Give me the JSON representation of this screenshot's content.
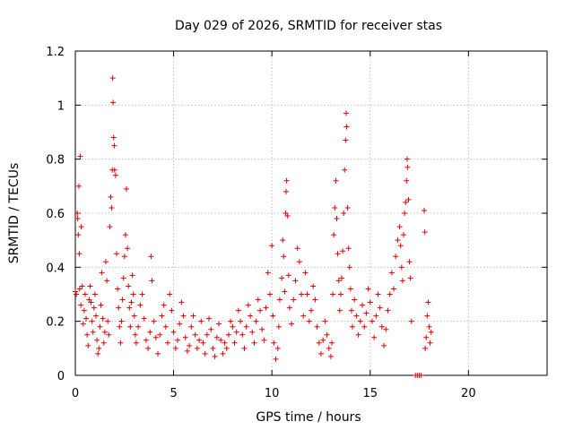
{
  "chart_data": {
    "type": "scatter",
    "title": "Day 029 of 2026, SRMTID for receiver stas",
    "xlabel": "GPS time / hours",
    "ylabel": "SRMTID / TECUs",
    "xlim": [
      0,
      24
    ],
    "ylim": [
      0,
      1.2
    ],
    "xticks": [
      0,
      5,
      10,
      15,
      20
    ],
    "xtick_labels": [
      "0",
      "5",
      "10",
      "15",
      "20"
    ],
    "yticks": [
      0,
      0.2,
      0.4,
      0.6,
      0.8,
      1,
      1.2
    ],
    "ytick_labels": [
      "0",
      "0.2",
      "0.4",
      "0.6",
      "0.8",
      "1",
      "1.2"
    ],
    "grid": true,
    "marker": "plus",
    "color": "#e00000",
    "series": [
      {
        "name": "SRMTID",
        "points": [
          [
            0.0,
            0.31
          ],
          [
            0.05,
            0.3
          ],
          [
            0.1,
            0.6
          ],
          [
            0.12,
            0.58
          ],
          [
            0.15,
            0.52
          ],
          [
            0.18,
            0.7
          ],
          [
            0.2,
            0.45
          ],
          [
            0.22,
            0.32
          ],
          [
            0.25,
            0.81
          ],
          [
            0.28,
            0.26
          ],
          [
            0.3,
            0.55
          ],
          [
            0.35,
            0.33
          ],
          [
            0.4,
            0.19
          ],
          [
            0.45,
            0.24
          ],
          [
            0.5,
            0.3
          ],
          [
            0.55,
            0.21
          ],
          [
            0.6,
            0.15
          ],
          [
            0.65,
            0.11
          ],
          [
            0.7,
            0.28
          ],
          [
            0.75,
            0.33
          ],
          [
            0.8,
            0.27
          ],
          [
            0.85,
            0.2
          ],
          [
            0.9,
            0.16
          ],
          [
            0.95,
            0.25
          ],
          [
            1.0,
            0.3
          ],
          [
            1.05,
            0.22
          ],
          [
            1.1,
            0.13
          ],
          [
            1.15,
            0.08
          ],
          [
            1.2,
            0.1
          ],
          [
            1.25,
            0.18
          ],
          [
            1.3,
            0.26
          ],
          [
            1.35,
            0.38
          ],
          [
            1.4,
            0.21
          ],
          [
            1.45,
            0.12
          ],
          [
            1.5,
            0.16
          ],
          [
            1.55,
            0.42
          ],
          [
            1.6,
            0.35
          ],
          [
            1.65,
            0.2
          ],
          [
            1.7,
            0.15
          ],
          [
            1.75,
            0.55
          ],
          [
            1.8,
            0.66
          ],
          [
            1.85,
            0.62
          ],
          [
            1.88,
            0.76
          ],
          [
            1.9,
            1.1
          ],
          [
            1.92,
            1.01
          ],
          [
            1.95,
            0.88
          ],
          [
            1.98,
            0.85
          ],
          [
            2.0,
            0.76
          ],
          [
            2.05,
            0.74
          ],
          [
            2.1,
            0.45
          ],
          [
            2.15,
            0.32
          ],
          [
            2.2,
            0.25
          ],
          [
            2.25,
            0.18
          ],
          [
            2.3,
            0.12
          ],
          [
            2.35,
            0.2
          ],
          [
            2.4,
            0.28
          ],
          [
            2.45,
            0.36
          ],
          [
            2.5,
            0.44
          ],
          [
            2.55,
            0.52
          ],
          [
            2.6,
            0.69
          ],
          [
            2.65,
            0.47
          ],
          [
            2.7,
            0.33
          ],
          [
            2.75,
            0.25
          ],
          [
            2.8,
            0.18
          ],
          [
            2.85,
            0.27
          ],
          [
            2.9,
            0.37
          ],
          [
            2.95,
            0.3
          ],
          [
            3.0,
            0.22
          ],
          [
            3.05,
            0.15
          ],
          [
            3.1,
            0.12
          ],
          [
            3.2,
            0.18
          ],
          [
            3.3,
            0.26
          ],
          [
            3.4,
            0.3
          ],
          [
            3.5,
            0.21
          ],
          [
            3.6,
            0.13
          ],
          [
            3.7,
            0.1
          ],
          [
            3.8,
            0.16
          ],
          [
            3.85,
            0.44
          ],
          [
            3.9,
            0.35
          ],
          [
            4.0,
            0.2
          ],
          [
            4.1,
            0.14
          ],
          [
            4.2,
            0.08
          ],
          [
            4.3,
            0.15
          ],
          [
            4.4,
            0.22
          ],
          [
            4.5,
            0.26
          ],
          [
            4.6,
            0.18
          ],
          [
            4.7,
            0.12
          ],
          [
            4.8,
            0.3
          ],
          [
            4.9,
            0.24
          ],
          [
            5.0,
            0.16
          ],
          [
            5.1,
            0.1
          ],
          [
            5.2,
            0.13
          ],
          [
            5.3,
            0.19
          ],
          [
            5.4,
            0.27
          ],
          [
            5.5,
            0.22
          ],
          [
            5.6,
            0.14
          ],
          [
            5.7,
            0.09
          ],
          [
            5.8,
            0.11
          ],
          [
            5.9,
            0.18
          ],
          [
            6.0,
            0.22
          ],
          [
            6.1,
            0.15
          ],
          [
            6.2,
            0.1
          ],
          [
            6.3,
            0.13
          ],
          [
            6.4,
            0.2
          ],
          [
            6.5,
            0.12
          ],
          [
            6.6,
            0.08
          ],
          [
            6.7,
            0.15
          ],
          [
            6.8,
            0.21
          ],
          [
            6.9,
            0.17
          ],
          [
            7.0,
            0.1
          ],
          [
            7.1,
            0.07
          ],
          [
            7.2,
            0.14
          ],
          [
            7.3,
            0.19
          ],
          [
            7.4,
            0.13
          ],
          [
            7.5,
            0.08
          ],
          [
            7.6,
            0.12
          ],
          [
            7.7,
            0.1
          ],
          [
            7.8,
            0.15
          ],
          [
            7.9,
            0.2
          ],
          [
            8.0,
            0.18
          ],
          [
            8.1,
            0.12
          ],
          [
            8.2,
            0.16
          ],
          [
            8.3,
            0.24
          ],
          [
            8.4,
            0.2
          ],
          [
            8.5,
            0.15
          ],
          [
            8.6,
            0.1
          ],
          [
            8.7,
            0.18
          ],
          [
            8.8,
            0.26
          ],
          [
            8.9,
            0.22
          ],
          [
            9.0,
            0.16
          ],
          [
            9.1,
            0.12
          ],
          [
            9.2,
            0.2
          ],
          [
            9.3,
            0.28
          ],
          [
            9.4,
            0.24
          ],
          [
            9.5,
            0.17
          ],
          [
            9.6,
            0.13
          ],
          [
            9.7,
            0.25
          ],
          [
            9.8,
            0.38
          ],
          [
            9.9,
            0.3
          ],
          [
            10.0,
            0.48
          ],
          [
            10.05,
            0.22
          ],
          [
            10.1,
            0.12
          ],
          [
            10.2,
            0.06
          ],
          [
            10.3,
            0.1
          ],
          [
            10.35,
            0.18
          ],
          [
            10.4,
            0.28
          ],
          [
            10.5,
            0.36
          ],
          [
            10.55,
            0.5
          ],
          [
            10.6,
            0.44
          ],
          [
            10.65,
            0.31
          ],
          [
            10.7,
            0.6
          ],
          [
            10.72,
            0.68
          ],
          [
            10.75,
            0.72
          ],
          [
            10.8,
            0.59
          ],
          [
            10.85,
            0.37
          ],
          [
            10.9,
            0.25
          ],
          [
            11.0,
            0.19
          ],
          [
            11.1,
            0.28
          ],
          [
            11.2,
            0.35
          ],
          [
            11.3,
            0.47
          ],
          [
            11.4,
            0.42
          ],
          [
            11.5,
            0.3
          ],
          [
            11.6,
            0.22
          ],
          [
            11.7,
            0.38
          ],
          [
            11.8,
            0.3
          ],
          [
            11.9,
            0.2
          ],
          [
            12.0,
            0.24
          ],
          [
            12.1,
            0.33
          ],
          [
            12.2,
            0.28
          ],
          [
            12.3,
            0.18
          ],
          [
            12.4,
            0.12
          ],
          [
            12.5,
            0.08
          ],
          [
            12.6,
            0.13
          ],
          [
            12.7,
            0.2
          ],
          [
            12.8,
            0.15
          ],
          [
            12.9,
            0.1
          ],
          [
            13.0,
            0.07
          ],
          [
            13.05,
            0.12
          ],
          [
            13.1,
            0.3
          ],
          [
            13.15,
            0.52
          ],
          [
            13.2,
            0.62
          ],
          [
            13.25,
            0.72
          ],
          [
            13.3,
            0.58
          ],
          [
            13.35,
            0.45
          ],
          [
            13.4,
            0.35
          ],
          [
            13.45,
            0.24
          ],
          [
            13.5,
            0.3
          ],
          [
            13.55,
            0.36
          ],
          [
            13.6,
            0.46
          ],
          [
            13.65,
            0.6
          ],
          [
            13.7,
            0.76
          ],
          [
            13.75,
            0.87
          ],
          [
            13.78,
            0.97
          ],
          [
            13.8,
            0.92
          ],
          [
            13.85,
            0.62
          ],
          [
            13.9,
            0.47
          ],
          [
            13.95,
            0.4
          ],
          [
            14.0,
            0.32
          ],
          [
            14.05,
            0.24
          ],
          [
            14.1,
            0.18
          ],
          [
            14.2,
            0.28
          ],
          [
            14.3,
            0.22
          ],
          [
            14.4,
            0.15
          ],
          [
            14.5,
            0.2
          ],
          [
            14.6,
            0.26
          ],
          [
            14.7,
            0.18
          ],
          [
            14.8,
            0.23
          ],
          [
            14.9,
            0.32
          ],
          [
            15.0,
            0.27
          ],
          [
            15.1,
            0.2
          ],
          [
            15.2,
            0.14
          ],
          [
            15.3,
            0.22
          ],
          [
            15.4,
            0.3
          ],
          [
            15.5,
            0.25
          ],
          [
            15.6,
            0.18
          ],
          [
            15.7,
            0.11
          ],
          [
            15.8,
            0.17
          ],
          [
            15.9,
            0.24
          ],
          [
            16.0,
            0.3
          ],
          [
            16.1,
            0.38
          ],
          [
            16.2,
            0.32
          ],
          [
            16.3,
            0.44
          ],
          [
            16.4,
            0.5
          ],
          [
            16.5,
            0.55
          ],
          [
            16.55,
            0.48
          ],
          [
            16.6,
            0.4
          ],
          [
            16.65,
            0.35
          ],
          [
            16.7,
            0.52
          ],
          [
            16.75,
            0.6
          ],
          [
            16.8,
            0.64
          ],
          [
            16.85,
            0.72
          ],
          [
            16.88,
            0.8
          ],
          [
            16.9,
            0.77
          ],
          [
            16.95,
            0.65
          ],
          [
            17.0,
            0.42
          ],
          [
            17.05,
            0.36
          ],
          [
            17.1,
            0.2
          ],
          [
            17.3,
            0.0
          ],
          [
            17.4,
            0.0
          ],
          [
            17.5,
            0.0
          ],
          [
            17.6,
            0.0
          ],
          [
            17.75,
            0.61
          ],
          [
            17.78,
            0.53
          ],
          [
            17.8,
            0.1
          ],
          [
            17.85,
            0.14
          ],
          [
            17.9,
            0.22
          ],
          [
            17.95,
            0.27
          ],
          [
            18.0,
            0.18
          ],
          [
            18.05,
            0.12
          ],
          [
            18.1,
            0.16
          ]
        ]
      }
    ]
  }
}
